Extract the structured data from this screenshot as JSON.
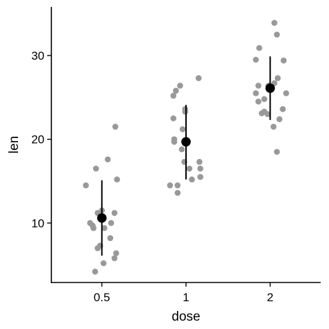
{
  "chart_data": {
    "type": "scatter",
    "title": "",
    "xlabel": "dose",
    "ylabel": "len",
    "categories": [
      "0.5",
      "1",
      "2"
    ],
    "ylim": [
      2.9,
      35.8
    ],
    "yticks": [
      10,
      20,
      30
    ],
    "grid": false,
    "colors": {
      "points": "#999999",
      "summary": "#000000"
    },
    "points": [
      {
        "category": "0.5",
        "offset": -0.19,
        "len": 14.5
      },
      {
        "category": "0.5",
        "offset": 0.16,
        "len": 21.5
      },
      {
        "category": "0.5",
        "offset": -0.07,
        "len": 16.5
      },
      {
        "category": "0.5",
        "offset": 0.07,
        "len": 17.6
      },
      {
        "category": "0.5",
        "offset": 0.18,
        "len": 15.2
      },
      {
        "category": "0.5",
        "offset": -0.14,
        "len": 10.0
      },
      {
        "category": "0.5",
        "offset": -0.11,
        "len": 9.7
      },
      {
        "category": "0.5",
        "offset": -0.1,
        "len": 9.4
      },
      {
        "category": "0.5",
        "offset": -0.05,
        "len": 11.2
      },
      {
        "category": "0.5",
        "offset": 0.0,
        "len": 11.5
      },
      {
        "category": "0.5",
        "offset": 0.15,
        "len": 11.2
      },
      {
        "category": "0.5",
        "offset": 0.11,
        "len": 10.0
      },
      {
        "category": "0.5",
        "offset": 0.03,
        "len": 9.4
      },
      {
        "category": "0.5",
        "offset": 0.1,
        "len": 8.2
      },
      {
        "category": "0.5",
        "offset": -0.02,
        "len": 7.3
      },
      {
        "category": "0.5",
        "offset": -0.05,
        "len": 7.0
      },
      {
        "category": "0.5",
        "offset": 0.17,
        "len": 6.4
      },
      {
        "category": "0.5",
        "offset": 0.15,
        "len": 5.8
      },
      {
        "category": "0.5",
        "offset": 0.02,
        "len": 5.2
      },
      {
        "category": "0.5",
        "offset": -0.08,
        "len": 4.2
      },
      {
        "category": "1",
        "offset": -0.15,
        "len": 25.2
      },
      {
        "category": "1",
        "offset": -0.07,
        "len": 26.4
      },
      {
        "category": "1",
        "offset": 0.15,
        "len": 27.3
      },
      {
        "category": "1",
        "offset": -0.12,
        "len": 25.8
      },
      {
        "category": "1",
        "offset": -0.01,
        "len": 23.6
      },
      {
        "category": "1",
        "offset": -0.01,
        "len": 23.3
      },
      {
        "category": "1",
        "offset": -0.15,
        "len": 22.5
      },
      {
        "category": "1",
        "offset": -0.04,
        "len": 21.2
      },
      {
        "category": "1",
        "offset": -0.14,
        "len": 20.0
      },
      {
        "category": "1",
        "offset": -0.14,
        "len": 19.7
      },
      {
        "category": "1",
        "offset": -0.05,
        "len": 18.8
      },
      {
        "category": "1",
        "offset": -0.02,
        "len": 17.3
      },
      {
        "category": "1",
        "offset": 0.16,
        "len": 17.3
      },
      {
        "category": "1",
        "offset": 0.04,
        "len": 16.5
      },
      {
        "category": "1",
        "offset": 0.17,
        "len": 16.5
      },
      {
        "category": "1",
        "offset": 0.17,
        "len": 15.5
      },
      {
        "category": "1",
        "offset": 0.07,
        "len": 15.2
      },
      {
        "category": "1",
        "offset": -0.19,
        "len": 14.5
      },
      {
        "category": "1",
        "offset": -0.1,
        "len": 14.5
      },
      {
        "category": "1",
        "offset": -0.1,
        "len": 13.6
      },
      {
        "category": "2",
        "offset": 0.05,
        "len": 33.9
      },
      {
        "category": "2",
        "offset": 0.08,
        "len": 32.5
      },
      {
        "category": "2",
        "offset": -0.13,
        "len": 30.9
      },
      {
        "category": "2",
        "offset": -0.17,
        "len": 29.5
      },
      {
        "category": "2",
        "offset": 0.16,
        "len": 29.4
      },
      {
        "category": "2",
        "offset": 0.09,
        "len": 27.3
      },
      {
        "category": "2",
        "offset": -0.14,
        "len": 26.4
      },
      {
        "category": "2",
        "offset": -0.02,
        "len": 26.4
      },
      {
        "category": "2",
        "offset": 0.05,
        "len": 26.7
      },
      {
        "category": "2",
        "offset": -0.17,
        "len": 25.5
      },
      {
        "category": "2",
        "offset": 0.19,
        "len": 25.5
      },
      {
        "category": "2",
        "offset": -0.14,
        "len": 24.5
      },
      {
        "category": "2",
        "offset": -0.07,
        "len": 24.8
      },
      {
        "category": "2",
        "offset": 0.15,
        "len": 23.6
      },
      {
        "category": "2",
        "offset": -0.07,
        "len": 23.3
      },
      {
        "category": "2",
        "offset": -0.03,
        "len": 23.0
      },
      {
        "category": "2",
        "offset": 0.11,
        "len": 22.4
      },
      {
        "category": "2",
        "offset": 0.04,
        "len": 21.5
      },
      {
        "category": "2",
        "offset": 0.08,
        "len": 18.5
      },
      {
        "category": "2",
        "offset": -0.1,
        "len": 23.1
      }
    ],
    "summary": [
      {
        "category": "0.5",
        "mean": 10.6,
        "low": 6.1,
        "high": 15.1
      },
      {
        "category": "1",
        "mean": 19.7,
        "low": 15.2,
        "high": 24.1
      },
      {
        "category": "2",
        "mean": 26.1,
        "low": 22.3,
        "high": 29.9
      }
    ]
  }
}
